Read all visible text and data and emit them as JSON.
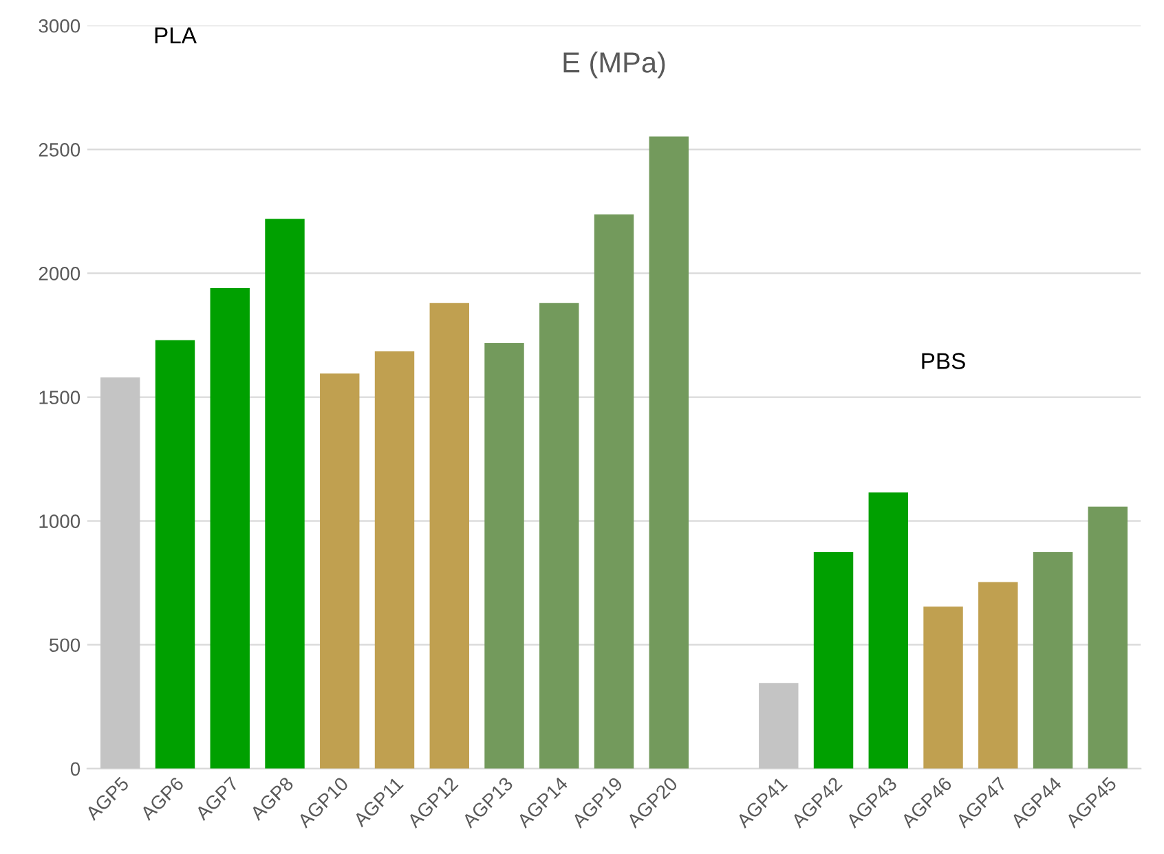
{
  "chart_data": {
    "type": "bar",
    "title": "E (MPa)",
    "categories": [
      "AGP5",
      "AGP6",
      "AGP7",
      "AGP8",
      "AGP10",
      "AGP11",
      "AGP12",
      "AGP13",
      "AGP14",
      "AGP19",
      "AGP20",
      null,
      "AGP41",
      "AGP42",
      "AGP43",
      "AGP46",
      "AGP47",
      "AGP44",
      "AGP45"
    ],
    "values": [
      1580,
      1730,
      1940,
      2220,
      1595,
      1685,
      1880,
      1718,
      1880,
      2238,
      2552,
      null,
      346,
      874,
      1115,
      654,
      753,
      874,
      1058
    ],
    "colors": [
      "#c4c4c4",
      "#00a000",
      "#00a000",
      "#00a000",
      "#c0a050",
      "#c0a050",
      "#c0a050",
      "#739a5c",
      "#739a5c",
      "#739a5c",
      "#739a5c",
      null,
      "#c4c4c4",
      "#00a000",
      "#00a000",
      "#c0a050",
      "#c0a050",
      "#739a5c",
      "#739a5c"
    ],
    "annotations": [
      "PLA",
      "PBS"
    ],
    "ylim": [
      0,
      3000
    ],
    "yticks": [
      0,
      500,
      1000,
      1500,
      2000,
      2500,
      3000
    ],
    "grid": "y"
  }
}
